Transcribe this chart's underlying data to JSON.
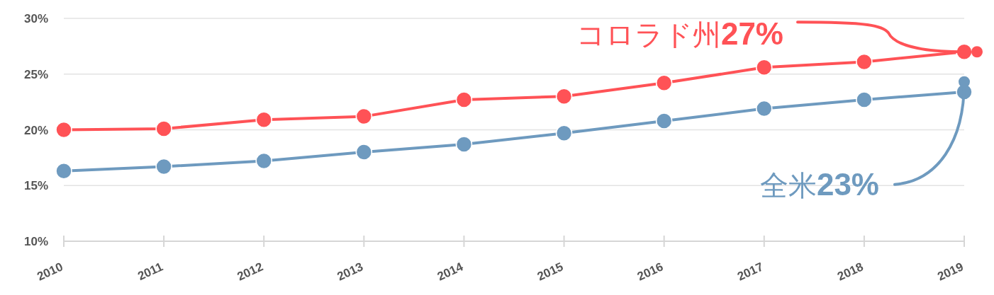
{
  "chart_data": {
    "type": "line",
    "categories": [
      "2010",
      "2011",
      "2012",
      "2013",
      "2014",
      "2015",
      "2016",
      "2017",
      "2018",
      "2019"
    ],
    "series": [
      {
        "color": "#ff5256",
        "values": [
          20.0,
          20.1,
          20.9,
          21.2,
          22.7,
          23.0,
          24.2,
          25.6,
          26.1,
          27.0
        ]
      },
      {
        "color": "#6e9abf",
        "values": [
          16.3,
          16.7,
          17.2,
          18.0,
          18.7,
          19.7,
          20.8,
          21.9,
          22.7,
          23.4
        ]
      }
    ],
    "ylim": [
      10,
      30
    ],
    "yticks": [
      {
        "value": 10,
        "label": "10%"
      },
      {
        "value": 15,
        "label": "15%"
      },
      {
        "value": 20,
        "label": "20%"
      },
      {
        "value": 25,
        "label": "25%"
      },
      {
        "value": 30,
        "label": "30%"
      }
    ],
    "grid": "y",
    "marker": "circle",
    "line_style": "solid",
    "annotations": [
      {
        "text": "コロラド州27%",
        "x": "2019",
        "y": 27.0
      },
      {
        "text": "全米23%",
        "x": "2019",
        "y": 24.3
      }
    ]
  }
}
